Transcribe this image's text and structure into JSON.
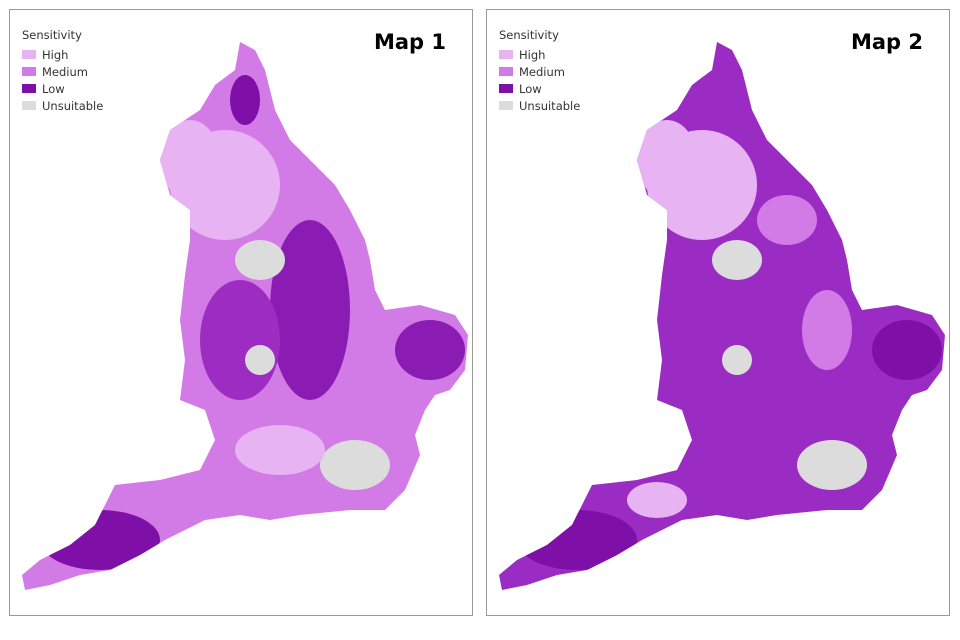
{
  "maps": [
    {
      "title": "Map 1",
      "legend": {
        "title": "Sensitivity",
        "items": [
          {
            "label": "High",
            "color": "#e8b3f2"
          },
          {
            "label": "Medium",
            "color": "#d27ae6"
          },
          {
            "label": "Low",
            "color": "#7e10a8"
          },
          {
            "label": "Unsuitable",
            "color": "#dcdcdc"
          }
        ]
      }
    },
    {
      "title": "Map 2",
      "legend": {
        "title": "Sensitivity",
        "items": [
          {
            "label": "High",
            "color": "#e8b3f2"
          },
          {
            "label": "Medium",
            "color": "#d27ae6"
          },
          {
            "label": "Low",
            "color": "#7e10a8"
          },
          {
            "label": "Unsuitable",
            "color": "#dcdcdc"
          }
        ]
      }
    }
  ]
}
